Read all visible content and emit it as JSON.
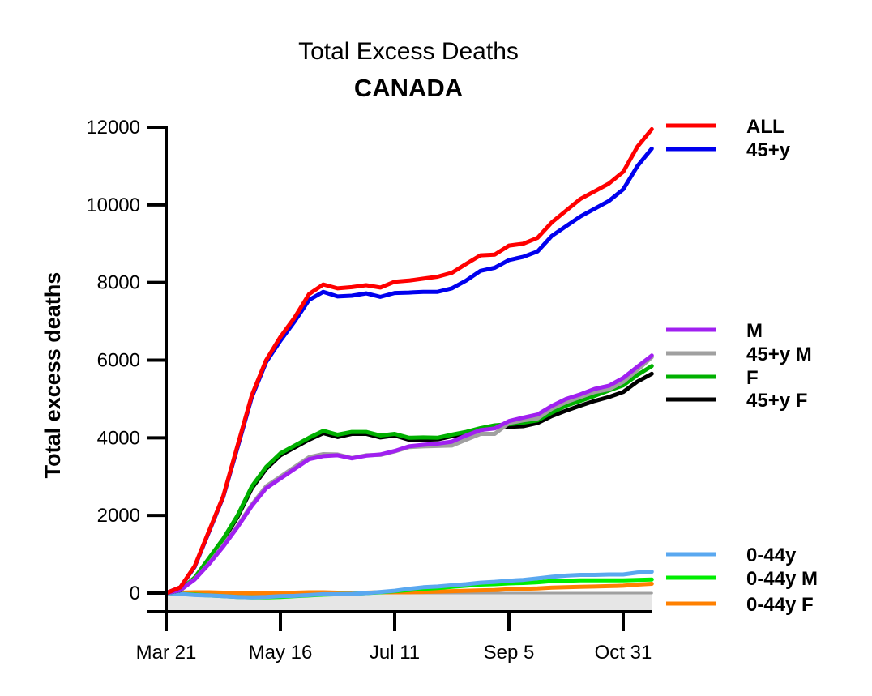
{
  "chart_data": {
    "type": "line",
    "title": "Total Excess Deaths",
    "subtitle": "CANADA",
    "ylabel": "Total excess deaths",
    "xlabel": "",
    "ylim": [
      -500,
      12000
    ],
    "xlim": [
      "2020-03-21",
      "2020-11-14"
    ],
    "yticks": [
      {
        "value": 0,
        "label": "0"
      },
      {
        "value": 2000,
        "label": "2000"
      },
      {
        "value": 4000,
        "label": "4000"
      },
      {
        "value": 6000,
        "label": "6000"
      },
      {
        "value": 8000,
        "label": "8000"
      },
      {
        "value": 10000,
        "label": "10000"
      },
      {
        "value": 12000,
        "label": "12000"
      }
    ],
    "xticks": [
      {
        "value": "2020-03-21",
        "label": "Mar 21"
      },
      {
        "value": "2020-05-16",
        "label": "May 16"
      },
      {
        "value": "2020-07-11",
        "label": "Jul 11"
      },
      {
        "value": "2020-09-05",
        "label": "Sep 5"
      },
      {
        "value": "2020-10-31",
        "label": "Oct 31"
      }
    ],
    "x": [
      "2020-03-21",
      "2020-03-28",
      "2020-04-04",
      "2020-04-11",
      "2020-04-18",
      "2020-04-25",
      "2020-05-02",
      "2020-05-09",
      "2020-05-16",
      "2020-05-23",
      "2020-05-30",
      "2020-06-06",
      "2020-06-13",
      "2020-06-20",
      "2020-06-27",
      "2020-07-04",
      "2020-07-11",
      "2020-07-18",
      "2020-07-25",
      "2020-08-01",
      "2020-08-08",
      "2020-08-15",
      "2020-08-22",
      "2020-08-29",
      "2020-09-05",
      "2020-09-12",
      "2020-09-19",
      "2020-09-26",
      "2020-10-03",
      "2020-10-10",
      "2020-10-17",
      "2020-10-24",
      "2020-10-31",
      "2020-11-07",
      "2020-11-14"
    ],
    "series": [
      {
        "name": "ALL",
        "color": "#ff0000",
        "values": [
          0,
          150,
          700,
          1600,
          2500,
          3800,
          5100,
          6000,
          6600,
          7100,
          7700,
          7950,
          7850,
          7880,
          7930,
          7870,
          8020,
          8050,
          8100,
          8150,
          8250,
          8480,
          8700,
          8720,
          8950,
          9000,
          9150,
          9550,
          9850,
          10150,
          10350,
          10550,
          10850,
          11500,
          11950
        ]
      },
      {
        "name": "45+y",
        "color": "#0000ee",
        "values": [
          0,
          150,
          680,
          1580,
          2480,
          3750,
          5050,
          5950,
          6500,
          7000,
          7550,
          7760,
          7640,
          7660,
          7720,
          7630,
          7730,
          7740,
          7760,
          7760,
          7850,
          8050,
          8300,
          8380,
          8580,
          8660,
          8800,
          9200,
          9450,
          9700,
          9900,
          10100,
          10400,
          11000,
          11450
        ]
      },
      {
        "name": "M",
        "color": "#a020f0",
        "values": [
          0,
          80,
          350,
          750,
          1200,
          1700,
          2250,
          2700,
          2950,
          3200,
          3450,
          3530,
          3550,
          3470,
          3540,
          3570,
          3660,
          3780,
          3820,
          3850,
          3900,
          4060,
          4200,
          4240,
          4430,
          4520,
          4600,
          4820,
          5000,
          5120,
          5260,
          5340,
          5540,
          5830,
          6120
        ]
      },
      {
        "name": "45+y M",
        "color": "#a0a0a0",
        "values": [
          0,
          80,
          360,
          760,
          1230,
          1730,
          2280,
          2750,
          3000,
          3250,
          3500,
          3580,
          3570,
          3480,
          3550,
          3560,
          3650,
          3760,
          3780,
          3790,
          3800,
          3950,
          4100,
          4100,
          4380,
          4450,
          4500,
          4750,
          4920,
          5050,
          5180,
          5250,
          5440,
          5750,
          6080
        ]
      },
      {
        "name": "F",
        "color": "#00b000",
        "values": [
          0,
          80,
          400,
          900,
          1400,
          2000,
          2750,
          3250,
          3600,
          3800,
          4000,
          4180,
          4080,
          4150,
          4150,
          4060,
          4100,
          4000,
          4010,
          4000,
          4080,
          4150,
          4250,
          4320,
          4350,
          4390,
          4450,
          4650,
          4830,
          4950,
          5080,
          5220,
          5350,
          5620,
          5850
        ]
      },
      {
        "name": "45+y F",
        "color": "#000000",
        "values": [
          0,
          70,
          380,
          870,
          1370,
          1960,
          2700,
          3200,
          3550,
          3750,
          3950,
          4120,
          4020,
          4100,
          4100,
          4010,
          4060,
          3950,
          3950,
          3960,
          4040,
          4100,
          4200,
          4270,
          4280,
          4300,
          4380,
          4560,
          4700,
          4830,
          4950,
          5050,
          5180,
          5450,
          5650
        ]
      },
      {
        "name": "0-44y",
        "color": "#5aa8f0",
        "values": [
          0,
          -20,
          -50,
          -60,
          -80,
          -100,
          -110,
          -100,
          -80,
          -70,
          -50,
          -30,
          -30,
          -20,
          0,
          30,
          60,
          110,
          150,
          170,
          200,
          230,
          270,
          290,
          320,
          340,
          380,
          420,
          450,
          470,
          470,
          480,
          480,
          530,
          550
        ]
      },
      {
        "name": "0-44y M",
        "color": "#00ee00",
        "values": [
          0,
          -20,
          -40,
          -60,
          -80,
          -100,
          -110,
          -110,
          -100,
          -80,
          -60,
          -40,
          -30,
          -20,
          0,
          20,
          50,
          80,
          110,
          130,
          160,
          190,
          220,
          230,
          250,
          260,
          280,
          310,
          320,
          330,
          330,
          330,
          330,
          340,
          350
        ]
      },
      {
        "name": "0-44y F",
        "color": "#ff8000",
        "values": [
          0,
          10,
          20,
          20,
          10,
          0,
          -10,
          -10,
          0,
          10,
          20,
          20,
          10,
          10,
          10,
          20,
          20,
          20,
          30,
          40,
          50,
          60,
          70,
          80,
          100,
          110,
          120,
          140,
          150,
          160,
          170,
          180,
          190,
          220,
          240
        ]
      },
      {
        "name": "",
        "color": "#a0a0a0",
        "values": [
          0,
          0,
          0,
          0,
          0,
          0,
          0,
          0,
          0,
          0,
          0,
          0,
          0,
          0,
          0,
          0,
          0,
          0,
          0,
          0,
          0,
          0,
          0,
          0,
          0,
          0,
          0,
          0,
          0,
          0,
          0,
          0,
          0,
          0,
          0
        ]
      }
    ],
    "legend": [
      {
        "label": "ALL",
        "color": "#ff0000"
      },
      {
        "label": "45+y",
        "color": "#0000ee"
      },
      {
        "label": "M",
        "color": "#a020f0"
      },
      {
        "label": "45+y M",
        "color": "#a0a0a0"
      },
      {
        "label": "F",
        "color": "#00b000"
      },
      {
        "label": "45+y F",
        "color": "#000000"
      },
      {
        "label": "0-44y",
        "color": "#5aa8f0"
      },
      {
        "label": "0-44y M",
        "color": "#00ee00"
      },
      {
        "label": "0-44y F",
        "color": "#ff8000"
      }
    ],
    "legend_position": "right",
    "grid": false,
    "zero_band_color": "#e6e6e6"
  }
}
